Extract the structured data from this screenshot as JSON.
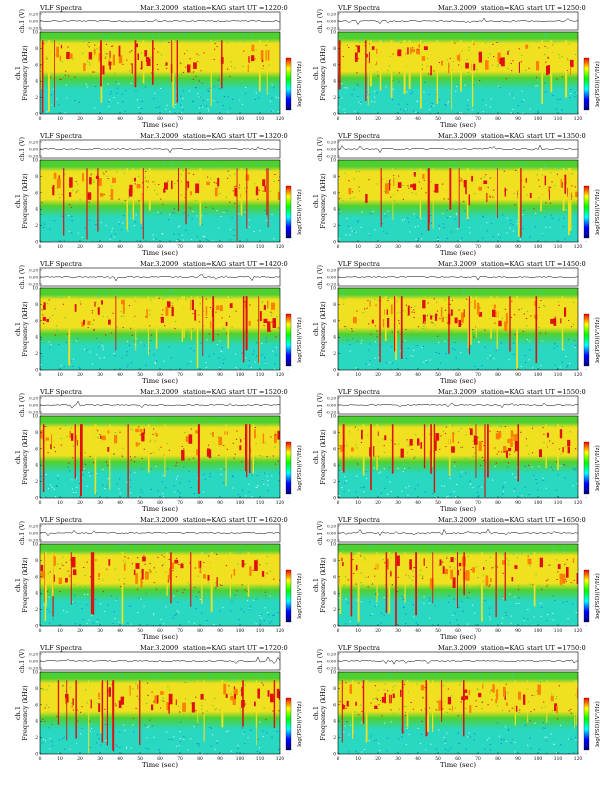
{
  "chart_data": [
    {
      "type": "heatmap",
      "header": {
        "left": "VLF Spectra",
        "date": "Mar.3.2009",
        "station": "station=KAG",
        "start": "start  UT =1220:0"
      }
    },
    {
      "type": "heatmap",
      "header": {
        "left": "VLF Spectra",
        "date": "Mar.3.2009",
        "station": "station=KAG",
        "start": "start  UT =1250:0"
      }
    },
    {
      "type": "heatmap",
      "header": {
        "left": "VLF Spectra",
        "date": "Mar.3.2009",
        "station": "station=KAG",
        "start": "start  UT =1320:0"
      }
    },
    {
      "type": "heatmap",
      "header": {
        "left": "VLF Spectra",
        "date": "Mar.3.2009",
        "station": "station=KAG",
        "start": "start  UT =1350:0"
      }
    },
    {
      "type": "heatmap",
      "header": {
        "left": "VLF Spectra",
        "date": "Mar.3.2009",
        "station": "station=KAG",
        "start": "start  UT =1420:0"
      }
    },
    {
      "type": "heatmap",
      "header": {
        "left": "VLF Spectra",
        "date": "Mar.3.2009",
        "station": "station=KAG",
        "start": "start  UT =1450:0"
      }
    },
    {
      "type": "heatmap",
      "header": {
        "left": "VLF Spectra",
        "date": "Mar.3.2009",
        "station": "station=KAG",
        "start": "start  UT =1520:0"
      }
    },
    {
      "type": "heatmap",
      "header": {
        "left": "VLF Spectra",
        "date": "Mar.3.2009",
        "station": "station=KAG",
        "start": "start  UT =1550:0"
      }
    },
    {
      "type": "heatmap",
      "header": {
        "left": "VLF Spectra",
        "date": "Mar.3.2009",
        "station": "station=KAG",
        "start": "start  UT =1620:0"
      }
    },
    {
      "type": "heatmap",
      "header": {
        "left": "VLF Spectra",
        "date": "Mar.3.2009",
        "station": "station=KAG",
        "start": "start  UT =1650:0"
      }
    },
    {
      "type": "heatmap",
      "header": {
        "left": "VLF Spectra",
        "date": "Mar.3.2009",
        "station": "station=KAG",
        "start": "start  UT =1720:0"
      }
    },
    {
      "type": "heatmap",
      "header": {
        "left": "VLF Spectra",
        "date": "Mar.3.2009",
        "station": "station=KAG",
        "start": "start  UT =1750:0"
      }
    }
  ],
  "shared": {
    "ch_label": "ch.1 (V)",
    "ch_ticks": [
      "0.20",
      "0.00",
      "-0.20"
    ],
    "ylabel": "Frequency (kHz)",
    "ylabel_ch": "ch.1",
    "freq_ticks": [
      "0",
      "2",
      "4",
      "6",
      "8",
      "10"
    ],
    "xlabel": "Time (sec)",
    "time_ticks": [
      "0",
      "10",
      "20",
      "30",
      "40",
      "50",
      "60",
      "70",
      "80",
      "90",
      "100",
      "110",
      "120"
    ],
    "colorbar_label": "log(PSD)(V²/Hz)",
    "ylim": [
      0,
      10
    ],
    "xlim": [
      0,
      120
    ]
  },
  "colors": {
    "high": "#e01010",
    "mid_high": "#f0e020",
    "mid": "#50d030",
    "low": "#28d8c0",
    "lowest": "#1880e0",
    "colorbar": [
      "#ff0000",
      "#ffff00",
      "#00ff00",
      "#00ffff",
      "#0000ff",
      "#000080"
    ]
  }
}
